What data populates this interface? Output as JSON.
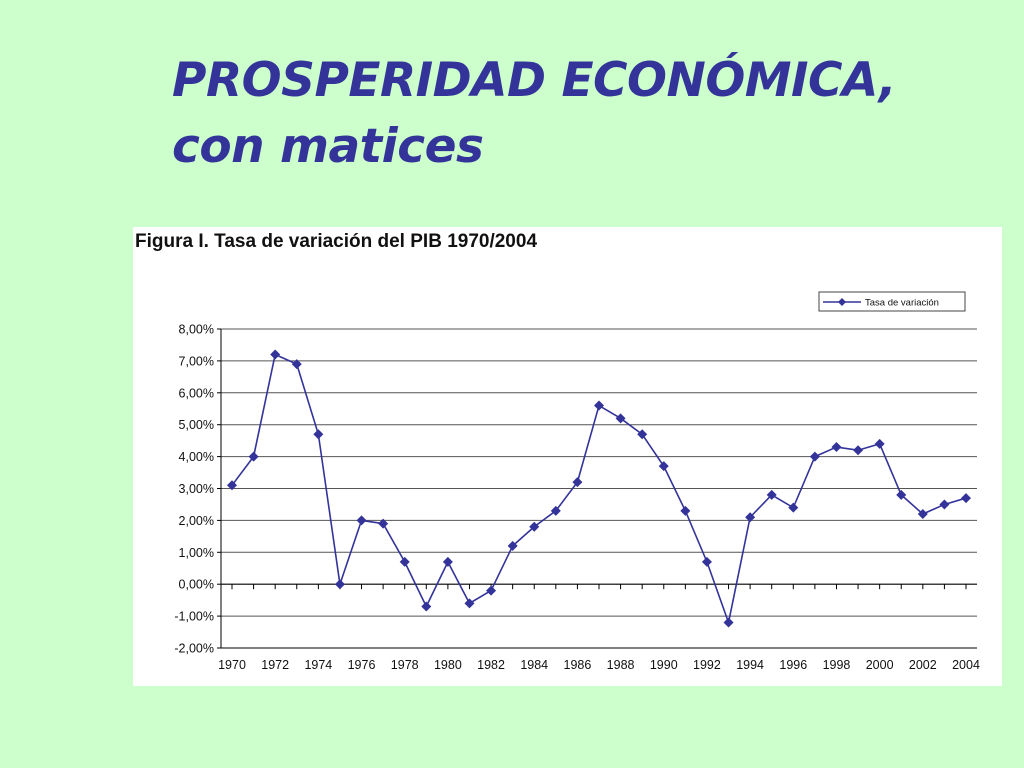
{
  "slide": {
    "title_line1": "PROSPERIDAD ECONÓMICA,",
    "title_line2": "con matices"
  },
  "colors": {
    "background": "#ccffcc",
    "title": "#33339a",
    "series": "#33339a",
    "grid": "#555555"
  },
  "chart_data": {
    "type": "line",
    "title": "Figura I. Tasa de variación del PIB 1970/2004",
    "xlabel": "",
    "ylabel": "",
    "grid": true,
    "legend_position": "top-right",
    "ylim": [
      -2,
      8
    ],
    "yticks": [
      "8,00%",
      "7,00%",
      "6,00%",
      "5,00%",
      "4,00%",
      "3,00%",
      "2,00%",
      "1,00%",
      "0,00%",
      "-1,00%",
      "-2,00%"
    ],
    "yticks_values": [
      8,
      7,
      6,
      5,
      4,
      3,
      2,
      1,
      0,
      -1,
      -2
    ],
    "xticks": [
      "1970",
      "1972",
      "1974",
      "1976",
      "1978",
      "1980",
      "1982",
      "1984",
      "1986",
      "1988",
      "1990",
      "1992",
      "1994",
      "1996",
      "1998",
      "2000",
      "2002",
      "2004"
    ],
    "x": [
      1970,
      1971,
      1972,
      1973,
      1974,
      1975,
      1976,
      1977,
      1978,
      1979,
      1980,
      1981,
      1982,
      1983,
      1984,
      1985,
      1986,
      1987,
      1988,
      1989,
      1990,
      1991,
      1992,
      1993,
      1994,
      1995,
      1996,
      1997,
      1998,
      1999,
      2000,
      2001,
      2002,
      2003,
      2004
    ],
    "series": [
      {
        "name": "Tasa de variación",
        "values": [
          3.1,
          4.0,
          7.2,
          6.9,
          4.7,
          0.0,
          2.0,
          1.9,
          0.7,
          -0.7,
          0.7,
          -0.6,
          -0.2,
          1.2,
          1.8,
          2.3,
          3.2,
          5.6,
          5.2,
          4.7,
          3.7,
          2.3,
          0.7,
          -1.2,
          2.1,
          2.8,
          2.4,
          4.0,
          4.3,
          4.2,
          4.4,
          2.8,
          2.2,
          2.5,
          2.7
        ]
      }
    ]
  }
}
